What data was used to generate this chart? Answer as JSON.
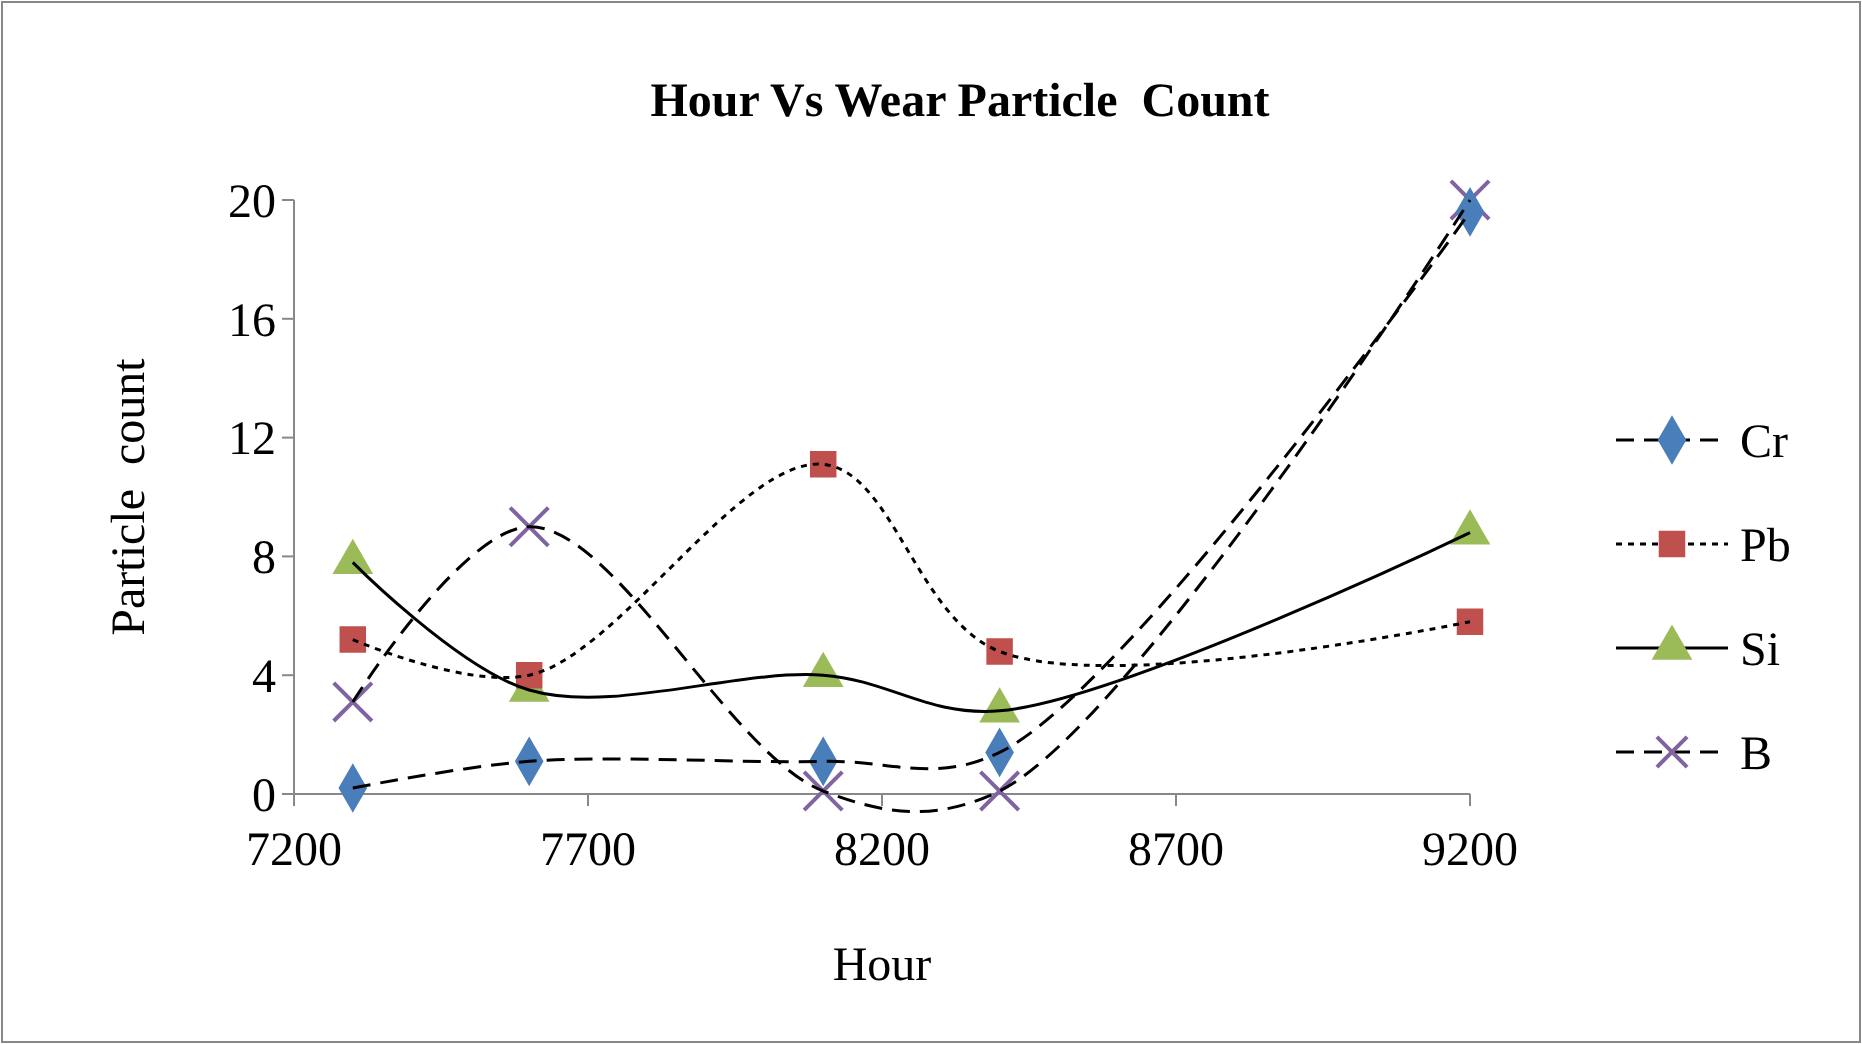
{
  "chart_data": {
    "type": "line",
    "title": "Hour Vs Wear Particle  Count",
    "xlabel": "Hour",
    "ylabel": "Particle  count",
    "x": [
      7300,
      7600,
      8100,
      8400,
      9200
    ],
    "series": [
      {
        "name": "Cr",
        "color": "#4a7ebb",
        "values": [
          0.2,
          1.1,
          1.1,
          1.4,
          19.6
        ],
        "marker": "diamond",
        "line_style": "dashed"
      },
      {
        "name": "Pb",
        "color": "#c0504d",
        "values": [
          5.2,
          4.0,
          11.1,
          4.8,
          5.8
        ],
        "marker": "square",
        "line_style": "dotted"
      },
      {
        "name": "Si",
        "color": "#9bbb59",
        "values": [
          7.8,
          3.5,
          4.0,
          2.8,
          8.8
        ],
        "marker": "triangle",
        "line_style": "solid"
      },
      {
        "name": "B",
        "color": "#8064a2",
        "values": [
          3.1,
          9.0,
          0.1,
          0.1,
          20.0
        ],
        "marker": "cross",
        "line_style": "dashed"
      }
    ],
    "xlim": [
      7200,
      9200
    ],
    "xticks": [
      7200,
      7700,
      8200,
      8700,
      9200
    ],
    "ylim": [
      0,
      20
    ],
    "yticks": [
      0,
      4,
      8,
      12,
      16,
      20
    ],
    "grid": false,
    "legend": "right"
  }
}
